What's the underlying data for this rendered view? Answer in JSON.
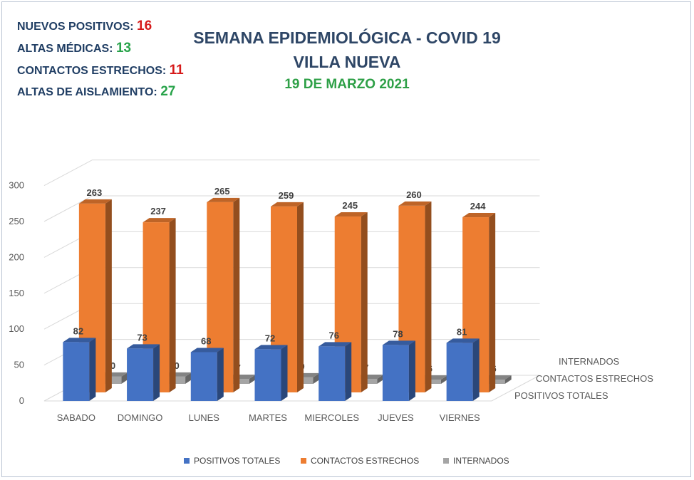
{
  "stats": [
    {
      "label": "NUEVOS POSITIVOS:",
      "value": "16",
      "color": "#d61a1a"
    },
    {
      "label": "ALTAS MÉDICAS:",
      "value": "13",
      "color": "#28a34a"
    },
    {
      "label": "CONTACTOS ESTRECHOS:",
      "value": "11",
      "color": "#d61a1a"
    },
    {
      "label": "ALTAS DE AISLAMIENTO:",
      "value": "27",
      "color": "#28a34a"
    }
  ],
  "chart_data": {
    "type": "bar",
    "title": "SEMANA EPIDEMIOLÓGICA - COVID 19",
    "subtitle": "VILLA NUEVA",
    "date": "19 DE MARZO 2021",
    "categories": [
      "SABADO",
      "DOMINGO",
      "LUNES",
      "MARTES",
      "MIERCOLES",
      "JUEVES",
      "VIERNES"
    ],
    "series": [
      {
        "name": "POSITIVOS TOTALES",
        "values": [
          82,
          73,
          68,
          72,
          76,
          78,
          81
        ],
        "color": "#4472c4"
      },
      {
        "name": "CONTACTOS ESTRECHOS",
        "values": [
          263,
          237,
          265,
          259,
          245,
          260,
          244
        ],
        "color": "#ed7d31"
      },
      {
        "name": "INTERNADOS",
        "values": [
          10,
          10,
          7,
          9,
          7,
          6,
          6
        ],
        "color": "#a5a5a5"
      }
    ],
    "depth_labels": [
      "INTERNADOS",
      "CONTACTOS ESTRECHOS",
      "POSITIVOS TOTALES"
    ],
    "yticks": [
      0,
      50,
      100,
      150,
      200,
      250,
      300
    ],
    "ylim": [
      0,
      300
    ],
    "legend_position": "bottom",
    "grid": true
  }
}
